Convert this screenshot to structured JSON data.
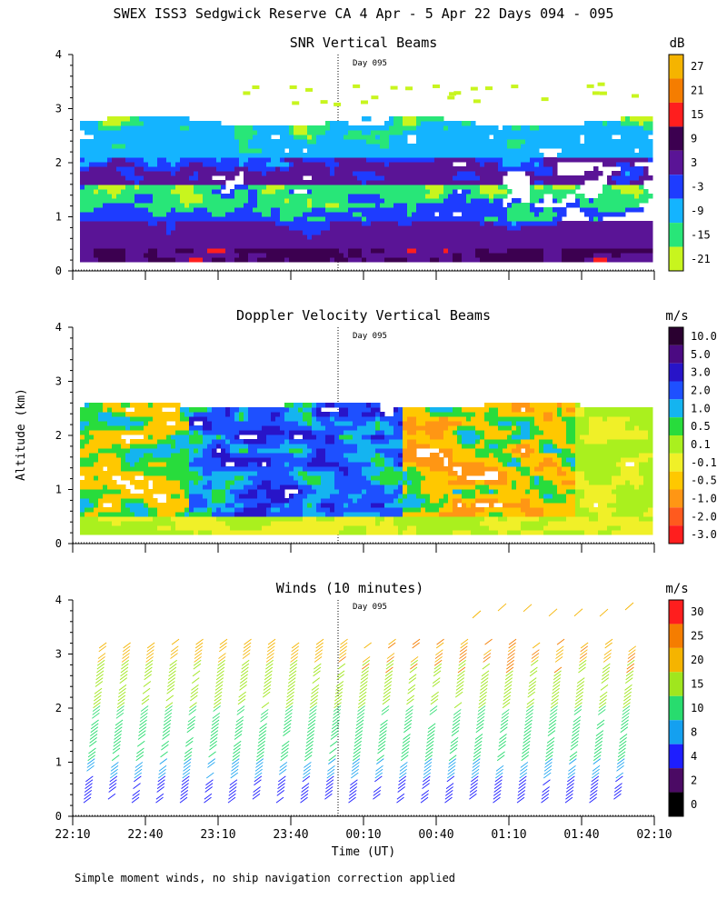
{
  "figure": {
    "title": "SWEX ISS3 Sedgwick Reserve CA   4 Apr -  5 Apr 22 Days 094 - 095",
    "ylabel": "Altitude (km)",
    "xlabel": "Time (UT)",
    "footer": "Simple moment winds, no ship navigation correction applied",
    "day_marker": "Day 095"
  },
  "chart_data": [
    {
      "type": "heatmap",
      "title": "SNR Vertical Beams",
      "xlabel": "",
      "ylabel": "Altitude (km)",
      "ylim": [
        0,
        4
      ],
      "y_ticks": [
        "0",
        "1",
        "2",
        "3",
        "4"
      ],
      "x_time_range_min": [
        0,
        240
      ],
      "colorbar": {
        "unit": "dB",
        "labels": [
          "27",
          "21",
          "15",
          "9",
          "3",
          "-3",
          "-9",
          "-15",
          "-21"
        ],
        "colors": [
          "#f5b400",
          "#f57d00",
          "#ff1e1e",
          "#3c0050",
          "#5a1496",
          "#1e3cff",
          "#14b4ff",
          "#28e678",
          "#c8f51e"
        ]
      }
    },
    {
      "type": "heatmap",
      "title": "Doppler Velocity Vertical Beams",
      "xlabel": "",
      "ylabel": "Altitude (km)",
      "ylim": [
        0,
        4
      ],
      "y_ticks": [
        "0",
        "1",
        "2",
        "3",
        "4"
      ],
      "colorbar": {
        "unit": "m/s",
        "labels": [
          "10.0",
          "5.0",
          "3.0",
          "2.0",
          "1.0",
          "0.5",
          "0.1",
          "-0.1",
          "-0.5",
          "-1.0",
          "-2.0",
          "-3.0"
        ],
        "colors": [
          "#2a0030",
          "#4b0a82",
          "#2814c8",
          "#1e50ff",
          "#14b4f0",
          "#28dc3c",
          "#aaf01e",
          "#f0f028",
          "#ffc800",
          "#ff9614",
          "#ff5a1e",
          "#ff1e1e"
        ]
      }
    },
    {
      "type": "scatter",
      "title": "Winds (10 minutes)",
      "xlabel": "Time (UT)",
      "ylabel": "Altitude (km)",
      "ylim": [
        0,
        4
      ],
      "y_ticks": [
        "0",
        "1",
        "2",
        "3",
        "4"
      ],
      "x_tick_labels": [
        "22:10",
        "22:40",
        "23:10",
        "23:40",
        "00:10",
        "00:40",
        "01:10",
        "01:40",
        "02:10"
      ],
      "colorbar": {
        "unit": "m/s",
        "labels": [
          "30",
          "25",
          "20",
          "15",
          "10",
          "8",
          "4",
          "2",
          "0"
        ],
        "colors": [
          "#ff1e1e",
          "#f57d00",
          "#f5b400",
          "#a0e61e",
          "#28dc6e",
          "#14a0f0",
          "#1e1eff",
          "#4b0a64",
          "#000000"
        ]
      }
    }
  ]
}
